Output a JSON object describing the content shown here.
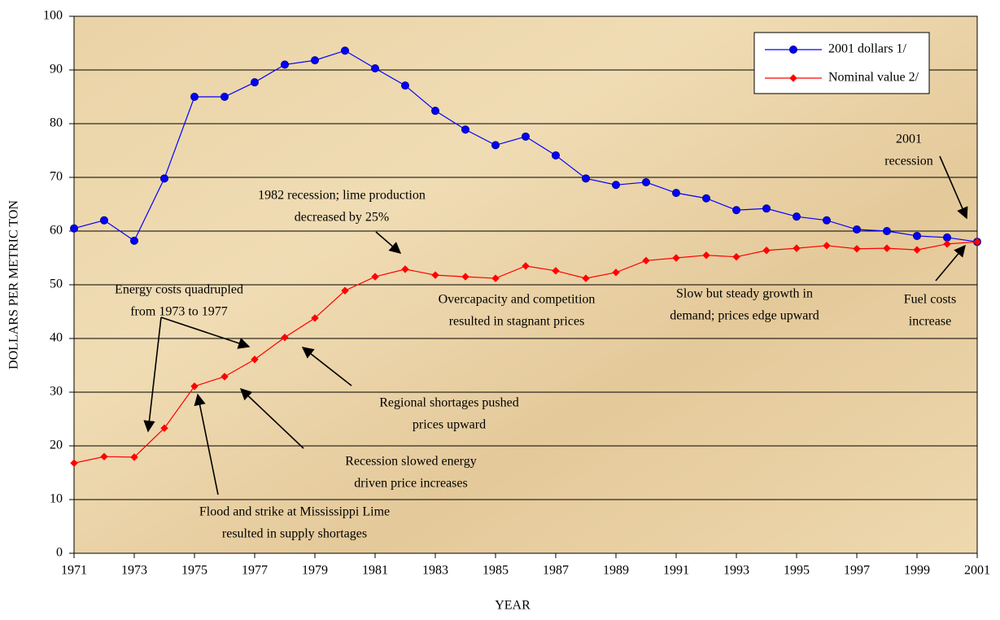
{
  "chart_data": {
    "type": "line",
    "x_label": "YEAR",
    "y_label": "DOLLARS PER METRIC TON",
    "x": [
      1971,
      1972,
      1973,
      1974,
      1975,
      1976,
      1977,
      1978,
      1979,
      1980,
      1981,
      1982,
      1983,
      1984,
      1985,
      1986,
      1987,
      1988,
      1989,
      1990,
      1991,
      1992,
      1993,
      1994,
      1995,
      1996,
      1997,
      1998,
      1999,
      2000,
      2001
    ],
    "series": [
      {
        "name": "2001 dollars 1/",
        "color": "#0000ff",
        "marker": "circle",
        "values": [
          60.5,
          62,
          58.2,
          69.8,
          85,
          85,
          87.7,
          91,
          91.8,
          93.6,
          90.3,
          87.1,
          82.4,
          78.9,
          76,
          77.6,
          74.1,
          69.8,
          68.6,
          69.1,
          67.1,
          66.1,
          63.9,
          64.2,
          62.7,
          62,
          60.3,
          60,
          59.1,
          58.8,
          58
        ]
      },
      {
        "name": "Nominal value 2/",
        "color": "#ff0000",
        "marker": "diamond",
        "values": [
          16.8,
          18,
          17.9,
          23.3,
          31.1,
          32.9,
          36.1,
          40.2,
          43.8,
          48.9,
          51.5,
          52.9,
          51.8,
          51.5,
          51.2,
          53.5,
          52.6,
          51.2,
          52.3,
          54.5,
          55,
          55.5,
          55.2,
          56.4,
          56.8,
          57.3,
          56.7,
          56.8,
          56.5,
          57.6,
          58
        ]
      }
    ],
    "xlim": [
      1971,
      2001
    ],
    "xticks": [
      1971,
      1973,
      1975,
      1977,
      1979,
      1981,
      1983,
      1985,
      1987,
      1989,
      1991,
      1993,
      1995,
      1997,
      1999,
      2001
    ],
    "ylim": [
      0,
      100
    ],
    "yticks": [
      0,
      10,
      20,
      30,
      40,
      50,
      60,
      70,
      80,
      90,
      100
    ],
    "grid": true,
    "legend": "upper right",
    "annotations": [
      {
        "lines": [
          "1982 recession; lime production",
          "decreased by 25%"
        ]
      },
      {
        "lines": [
          "Energy costs quadrupled",
          "from 1973 to 1977"
        ]
      },
      {
        "lines": [
          "Overcapacity and competition",
          "resulted in stagnant prices"
        ]
      },
      {
        "lines": [
          "Slow but steady growth in",
          "demand; prices edge upward"
        ]
      },
      {
        "lines": [
          "Fuel costs",
          "increase"
        ]
      },
      {
        "lines": [
          "2001",
          "recession"
        ]
      },
      {
        "lines": [
          "Regional shortages pushed",
          "prices upward"
        ]
      },
      {
        "lines": [
          "Recession slowed energy",
          "driven price increases"
        ]
      },
      {
        "lines": [
          "Flood and strike at Mississippi Lime",
          "resulted in supply shortages"
        ]
      }
    ]
  }
}
